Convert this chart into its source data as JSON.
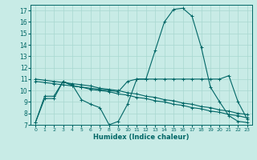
{
  "xlabel": "Humidex (Indice chaleur)",
  "ylabel": "",
  "xlim": [
    -0.5,
    23.5
  ],
  "ylim": [
    7,
    17.5
  ],
  "yticks": [
    7,
    8,
    9,
    10,
    11,
    12,
    13,
    14,
    15,
    16,
    17
  ],
  "xticks": [
    0,
    1,
    2,
    3,
    4,
    5,
    6,
    7,
    8,
    9,
    10,
    11,
    12,
    13,
    14,
    15,
    16,
    17,
    18,
    19,
    20,
    21,
    22,
    23
  ],
  "bg_color": "#c8ebe6",
  "grid_color": "#a8d8d0",
  "line_color": "#006666",
  "lines": [
    {
      "x": [
        0,
        1,
        2,
        3,
        4,
        5,
        6,
        7,
        8,
        9,
        10,
        11,
        12,
        13,
        14,
        15,
        16,
        17,
        18,
        19,
        20,
        21,
        22,
        23
      ],
      "y": [
        7.2,
        9.5,
        9.5,
        10.8,
        10.5,
        9.2,
        8.8,
        8.5,
        7.0,
        7.3,
        8.8,
        11.0,
        11.0,
        13.5,
        16.0,
        17.1,
        17.2,
        16.5,
        13.8,
        10.3,
        9.0,
        7.8,
        7.3,
        7.2
      ]
    },
    {
      "x": [
        0,
        1,
        2,
        3,
        4,
        5,
        6,
        7,
        8,
        9,
        10,
        11,
        12,
        13,
        14,
        15,
        16,
        17,
        18,
        19,
        20,
        21,
        22,
        23
      ],
      "y": [
        7.2,
        9.3,
        9.3,
        10.8,
        10.4,
        10.3,
        10.2,
        10.1,
        10.0,
        9.9,
        10.8,
        11.0,
        11.0,
        11.0,
        11.0,
        11.0,
        11.0,
        11.0,
        11.0,
        11.0,
        11.0,
        11.3,
        9.0,
        7.5
      ]
    },
    {
      "x": [
        0,
        1,
        2,
        3,
        4,
        5,
        6,
        7,
        8,
        9,
        10,
        11,
        12,
        13,
        14,
        15,
        16,
        17,
        18,
        19,
        20,
        21,
        22,
        23
      ],
      "y": [
        10.8,
        10.7,
        10.6,
        10.5,
        10.4,
        10.3,
        10.1,
        10.0,
        9.9,
        9.7,
        9.6,
        9.4,
        9.3,
        9.1,
        9.0,
        8.8,
        8.7,
        8.5,
        8.4,
        8.2,
        8.1,
        7.9,
        7.8,
        7.6
      ]
    },
    {
      "x": [
        0,
        1,
        2,
        3,
        4,
        5,
        6,
        7,
        8,
        9,
        10,
        11,
        12,
        13,
        14,
        15,
        16,
        17,
        18,
        19,
        20,
        21,
        22,
        23
      ],
      "y": [
        11.0,
        10.9,
        10.8,
        10.7,
        10.6,
        10.5,
        10.4,
        10.2,
        10.1,
        10.0,
        9.8,
        9.7,
        9.5,
        9.4,
        9.2,
        9.1,
        8.9,
        8.8,
        8.6,
        8.5,
        8.3,
        8.2,
        8.0,
        7.9
      ]
    }
  ]
}
